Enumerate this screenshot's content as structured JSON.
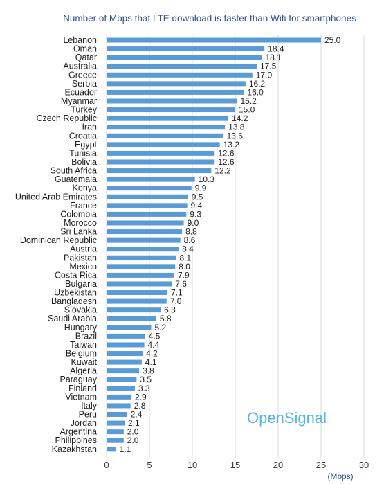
{
  "chart_data": {
    "type": "bar",
    "orientation": "horizontal",
    "title": "Number of Mbps that LTE download is faster than Wifi for smartphones",
    "xlabel": "(Mbps)",
    "ylabel": "",
    "xlim": [
      0,
      30
    ],
    "xticks": [
      "0",
      "5",
      "10",
      "15",
      "20",
      "25",
      "30"
    ],
    "grid": true,
    "categories": [
      "Lebanon",
      "Oman",
      "Qatar",
      "Australia",
      "Greece",
      "Serbia",
      "Ecuador",
      "Myanmar",
      "Turkey",
      "Czech Republic",
      "Iran",
      "Croatia",
      "Egypt",
      "Tunisia",
      "Bolivia",
      "South Africa",
      "Guatemala",
      "Kenya",
      "United Arab Emirates",
      "France",
      "Colombia",
      "Morocco",
      "Sri Lanka",
      "Dominican Republic",
      "Austria",
      "Pakistan",
      "Mexico",
      "Costa Rica",
      "Bulgaria",
      "Uzbekistan",
      "Bangladesh",
      "Slovakia",
      "Saudi Arabia",
      "Hungary",
      "Brazil",
      "Taiwan",
      "Belgium",
      "Kuwait",
      "Algeria",
      "Paraguay",
      "Finland",
      "Vietnam",
      "Italy",
      "Peru",
      "Jordan",
      "Argentina",
      "Philippines",
      "Kazakhstan"
    ],
    "values": [
      25.0,
      18.4,
      18.1,
      17.5,
      17.0,
      16.2,
      16.0,
      15.2,
      15.0,
      14.2,
      13.8,
      13.6,
      13.2,
      12.6,
      12.6,
      12.2,
      10.3,
      9.9,
      9.5,
      9.4,
      9.3,
      9.0,
      8.8,
      8.6,
      8.4,
      8.1,
      8.0,
      7.9,
      7.6,
      7.1,
      7.0,
      6.3,
      5.8,
      5.2,
      4.5,
      4.4,
      4.2,
      4.1,
      3.8,
      3.5,
      3.3,
      2.9,
      2.8,
      2.4,
      2.1,
      2.0,
      2.0,
      1.1
    ],
    "value_labels": [
      "25.0",
      "18.4",
      "18.1",
      "17.5",
      "17.0",
      "16.2",
      "16.0",
      "15.2",
      "15.0",
      "14.2",
      "13.8",
      "13.6",
      "13.2",
      "12.6",
      "12.6",
      "12.2",
      "10.3",
      "9.9",
      "9.5",
      "9.4",
      "9.3",
      "9.0",
      "8.8",
      "8.6",
      "8.4",
      "8.1",
      "8.0",
      "7.9",
      "7.6",
      "7.1",
      "7.0",
      "6.3",
      "5.8",
      "5.2",
      "4.5",
      "4.4",
      "4.2",
      "4.1",
      "3.8",
      "3.5",
      "3.3",
      "2.9",
      "2.8",
      "2.4",
      "2.1",
      "2.0",
      "2.0",
      "1.1"
    ],
    "bar_color": "#5b9bd5"
  },
  "logo": {
    "part1": "Open",
    "part2": "Signal"
  }
}
